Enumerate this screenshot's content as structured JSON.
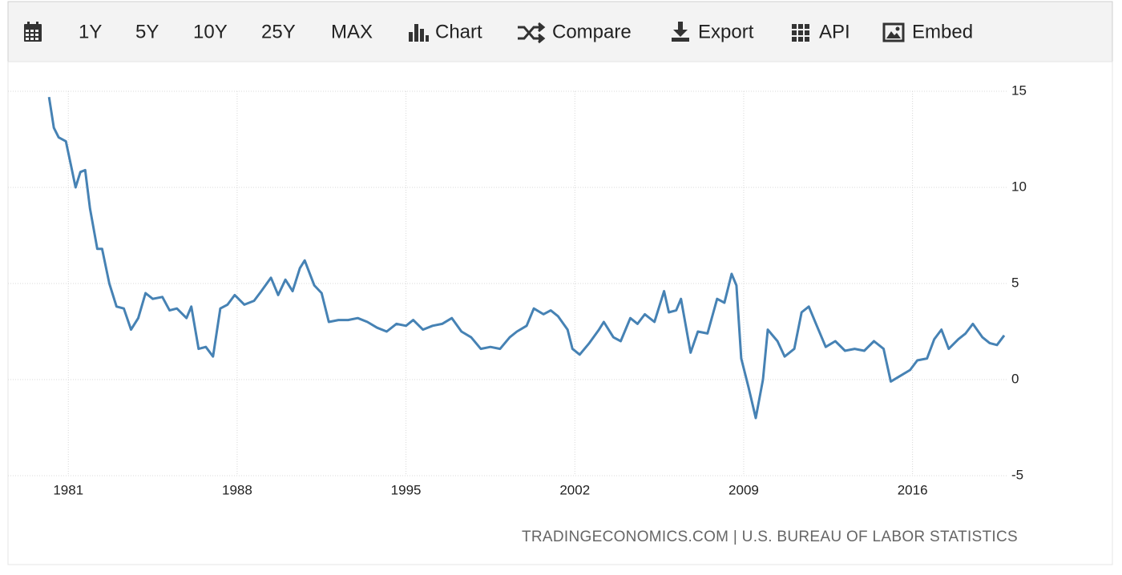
{
  "toolbar": {
    "items": [
      "1Y",
      "5Y",
      "10Y",
      "25Y",
      "MAX",
      "Chart",
      "Compare",
      "Export",
      "API",
      "Embed"
    ]
  },
  "chart_data": {
    "type": "line",
    "source": "TRADINGECONOMICS.COM | U.S. BUREAU OF LABOR STATISTICS",
    "xlim": [
      1978.5,
      2019.9
    ],
    "xticks": [
      1981,
      1988,
      1995,
      2002,
      2009,
      2016
    ],
    "ylim": [
      -5,
      15
    ],
    "yticks": [
      -5,
      0,
      5,
      10,
      15
    ],
    "grid": true,
    "series": [
      {
        "color": "#4682b4",
        "x": [
          1980.2,
          1980.4,
          1980.6,
          1980.9,
          1981.1,
          1981.3,
          1981.5,
          1981.7,
          1981.9,
          1982.2,
          1982.4,
          1982.7,
          1983.0,
          1983.3,
          1983.6,
          1983.9,
          1984.2,
          1984.5,
          1984.9,
          1985.2,
          1985.5,
          1985.9,
          1986.1,
          1986.4,
          1986.7,
          1987.0,
          1987.3,
          1987.6,
          1987.9,
          1988.3,
          1988.7,
          1989.0,
          1989.4,
          1989.7,
          1990.0,
          1990.3,
          1990.6,
          1990.8,
          1991.2,
          1991.5,
          1991.8,
          1992.2,
          1992.6,
          1993.0,
          1993.4,
          1993.8,
          1994.2,
          1994.6,
          1995.0,
          1995.3,
          1995.7,
          1996.1,
          1996.5,
          1996.9,
          1997.3,
          1997.7,
          1998.1,
          1998.5,
          1998.9,
          1999.3,
          1999.6,
          2000.0,
          2000.3,
          2000.7,
          2001.0,
          2001.3,
          2001.7,
          2001.9,
          2002.2,
          2002.6,
          2003.0,
          2003.2,
          2003.6,
          2003.9,
          2004.3,
          2004.6,
          2004.9,
          2005.3,
          2005.7,
          2005.9,
          2006.2,
          2006.4,
          2006.8,
          2007.1,
          2007.5,
          2007.9,
          2008.2,
          2008.5,
          2008.7,
          2008.9,
          2009.2,
          2009.5,
          2009.8,
          2010.0,
          2010.4,
          2010.7,
          2011.1,
          2011.4,
          2011.7,
          2012.0,
          2012.4,
          2012.8,
          2013.2,
          2013.6,
          2014.0,
          2014.4,
          2014.8,
          2015.1,
          2015.5,
          2015.9,
          2016.2,
          2016.6,
          2016.9,
          2017.2,
          2017.5,
          2017.9,
          2018.2,
          2018.5,
          2018.9,
          2019.2,
          2019.5,
          2019.8
        ],
        "values": [
          14.7,
          13.1,
          12.6,
          12.4,
          11.2,
          10.0,
          10.8,
          10.9,
          8.9,
          6.8,
          6.8,
          5.0,
          3.8,
          3.7,
          2.6,
          3.2,
          4.5,
          4.2,
          4.3,
          3.6,
          3.7,
          3.2,
          3.8,
          1.6,
          1.7,
          1.2,
          3.7,
          3.9,
          4.4,
          3.9,
          4.1,
          4.6,
          5.3,
          4.4,
          5.2,
          4.6,
          5.8,
          6.2,
          4.9,
          4.5,
          3.0,
          3.1,
          3.1,
          3.2,
          3.0,
          2.7,
          2.5,
          2.9,
          2.8,
          3.1,
          2.6,
          2.8,
          2.9,
          3.2,
          2.5,
          2.2,
          1.6,
          1.7,
          1.6,
          2.2,
          2.5,
          2.8,
          3.7,
          3.4,
          3.6,
          3.3,
          2.6,
          1.6,
          1.3,
          1.9,
          2.6,
          3.0,
          2.2,
          2.0,
          3.2,
          2.9,
          3.4,
          3.0,
          4.6,
          3.5,
          3.6,
          4.2,
          1.4,
          2.5,
          2.4,
          4.2,
          4.0,
          5.5,
          4.9,
          1.1,
          -0.4,
          -2.0,
          0.0,
          2.6,
          2.0,
          1.2,
          1.6,
          3.5,
          3.8,
          2.9,
          1.7,
          2.0,
          1.5,
          1.6,
          1.5,
          2.0,
          1.6,
          -0.1,
          0.2,
          0.5,
          1.0,
          1.1,
          2.1,
          2.6,
          1.6,
          2.1,
          2.4,
          2.9,
          2.2,
          1.9,
          1.8,
          2.3
        ]
      }
    ]
  }
}
